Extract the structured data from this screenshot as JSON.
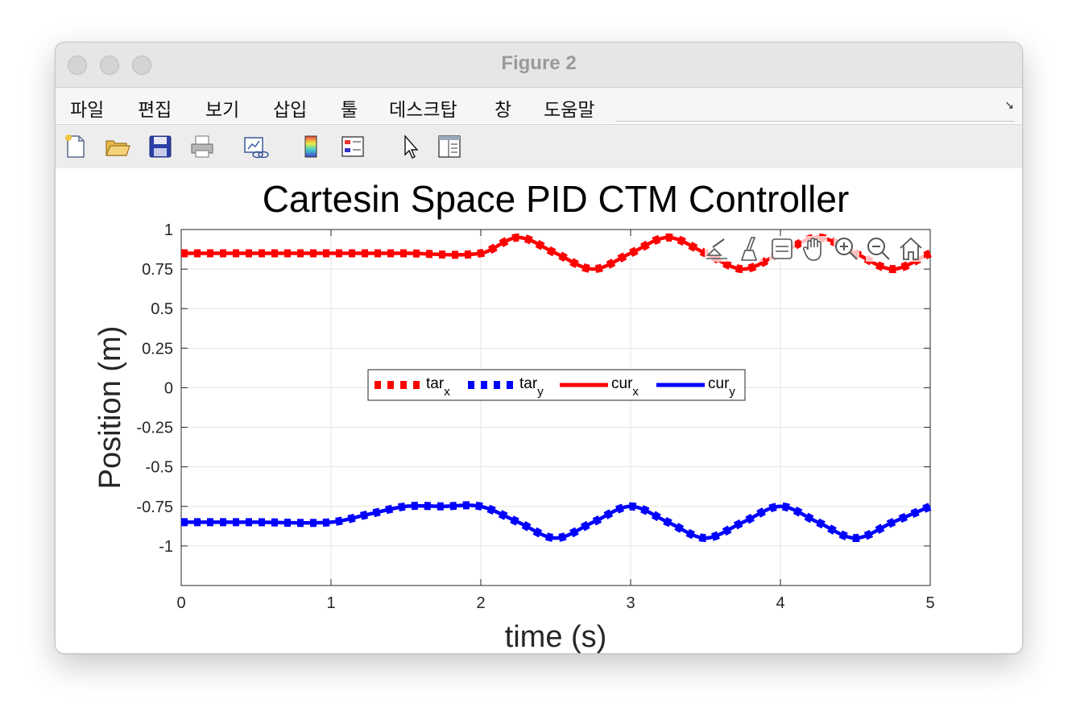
{
  "window": {
    "title": "Figure 2"
  },
  "menu": {
    "items": [
      "파일",
      "편집",
      "보기",
      "삽입",
      "툴",
      "데스크탑",
      "창",
      "도움말"
    ]
  },
  "toolbar": {
    "buttons": [
      "new-figure-icon",
      "open-file-icon",
      "save-icon",
      "print-icon",
      "link-plot-icon",
      "colorbar-icon",
      "legend-icon",
      "pointer-icon",
      "property-inspector-icon"
    ]
  },
  "axes_toolbar": {
    "buttons": [
      "brush-export-icon",
      "data-cursor-icon",
      "legend-toggle-icon",
      "pan-icon",
      "zoom-in-icon",
      "zoom-out-icon",
      "home-icon"
    ]
  },
  "chart_data": {
    "type": "line",
    "title": "Cartesin Space PID CTM Controller",
    "xlabel": "time (s)",
    "ylabel": "Position (m)",
    "xlim": [
      0,
      5
    ],
    "ylim": [
      -1.25,
      1
    ],
    "xticks": [
      "0",
      "1",
      "2",
      "3",
      "4",
      "5"
    ],
    "yticks": [
      "1",
      "0.75",
      "0.5",
      "0.25",
      "0",
      "-0.25",
      "-0.5",
      "-0.75",
      "-1"
    ],
    "grid": true,
    "legend": {
      "placement": "center",
      "orientation": "horizontal"
    },
    "series": [
      {
        "name": "tar_x",
        "label_base": "tar",
        "label_sub": "x",
        "color": "#ff0000",
        "style": "dotted",
        "x": [
          0,
          0.5,
          1,
          1.5,
          2,
          2.25,
          2.5,
          2.75,
          3,
          3.25,
          3.5,
          3.75,
          4,
          4.25,
          4.5,
          4.75,
          5
        ],
        "y": [
          0.85,
          0.85,
          0.85,
          0.85,
          0.85,
          0.95,
          0.85,
          0.75,
          0.85,
          0.95,
          0.85,
          0.75,
          0.85,
          0.95,
          0.85,
          0.75,
          0.85
        ]
      },
      {
        "name": "tar_y",
        "label_base": "tar",
        "label_sub": "y",
        "color": "#0000ff",
        "style": "dotted",
        "x": [
          0,
          0.5,
          1,
          1.25,
          1.5,
          1.75,
          2,
          2.25,
          2.5,
          2.75,
          3,
          3.25,
          3.5,
          3.75,
          4,
          4.25,
          4.5,
          4.75,
          5
        ],
        "y": [
          -0.85,
          -0.85,
          -0.85,
          -0.8,
          -0.75,
          -0.75,
          -0.75,
          -0.85,
          -0.95,
          -0.85,
          -0.75,
          -0.85,
          -0.95,
          -0.85,
          -0.75,
          -0.85,
          -0.95,
          -0.85,
          -0.75
        ]
      },
      {
        "name": "cur_x",
        "label_base": "cur",
        "label_sub": "x",
        "color": "#ff0000",
        "style": "solid",
        "x": [
          0,
          0.5,
          1,
          1.5,
          2,
          2.25,
          2.5,
          2.75,
          3,
          3.25,
          3.5,
          3.75,
          4,
          4.25,
          4.5,
          4.75,
          5
        ],
        "y": [
          0.85,
          0.85,
          0.85,
          0.85,
          0.85,
          0.95,
          0.85,
          0.75,
          0.85,
          0.95,
          0.85,
          0.75,
          0.85,
          0.95,
          0.85,
          0.75,
          0.85
        ]
      },
      {
        "name": "cur_y",
        "label_base": "cur",
        "label_sub": "y",
        "color": "#0000ff",
        "style": "solid",
        "x": [
          0,
          0.5,
          1,
          1.25,
          1.5,
          1.75,
          2,
          2.25,
          2.5,
          2.75,
          3,
          3.25,
          3.5,
          3.75,
          4,
          4.25,
          4.5,
          4.75,
          5
        ],
        "y": [
          -0.85,
          -0.85,
          -0.85,
          -0.8,
          -0.75,
          -0.75,
          -0.75,
          -0.85,
          -0.95,
          -0.85,
          -0.75,
          -0.85,
          -0.95,
          -0.85,
          -0.75,
          -0.85,
          -0.95,
          -0.85,
          -0.75
        ]
      }
    ]
  }
}
